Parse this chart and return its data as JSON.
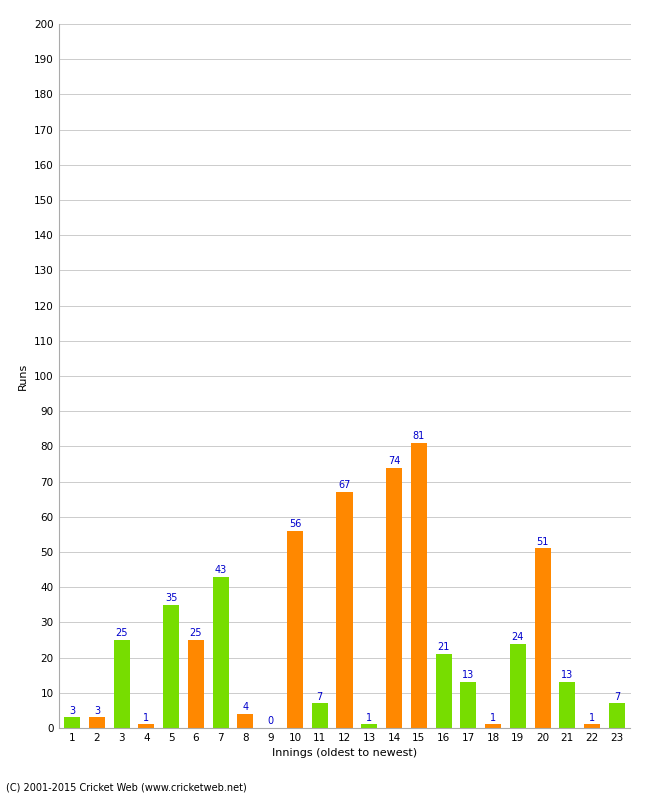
{
  "innings": [
    1,
    2,
    3,
    4,
    5,
    6,
    7,
    8,
    9,
    10,
    11,
    12,
    13,
    14,
    15,
    16,
    17,
    18,
    19,
    20,
    21,
    22,
    23
  ],
  "values": [
    3,
    3,
    25,
    1,
    35,
    25,
    43,
    4,
    0,
    56,
    7,
    67,
    1,
    74,
    81,
    21,
    13,
    1,
    24,
    51,
    13,
    1,
    7
  ],
  "bar_colors": [
    "#77dd00",
    "#ff8800",
    "#77dd00",
    "#ff8800",
    "#77dd00",
    "#ff8800",
    "#77dd00",
    "#ff8800",
    "#77dd00",
    "#ff8800",
    "#77dd00",
    "#ff8800",
    "#77dd00",
    "#ff8800",
    "#ff8800",
    "#77dd00",
    "#77dd00",
    "#ff8800",
    "#77dd00",
    "#ff8800",
    "#77dd00",
    "#ff8800",
    "#77dd00"
  ],
  "xlabel": "Innings (oldest to newest)",
  "ylabel": "Runs",
  "ylim": [
    0,
    200
  ],
  "label_color": "#0000cc",
  "label_fontsize": 7,
  "axis_label_fontsize": 8,
  "tick_fontsize": 7.5,
  "background_color": "#ffffff",
  "grid_color": "#cccccc",
  "footer": "(C) 2001-2015 Cricket Web (www.cricketweb.net)",
  "footer_fontsize": 7
}
